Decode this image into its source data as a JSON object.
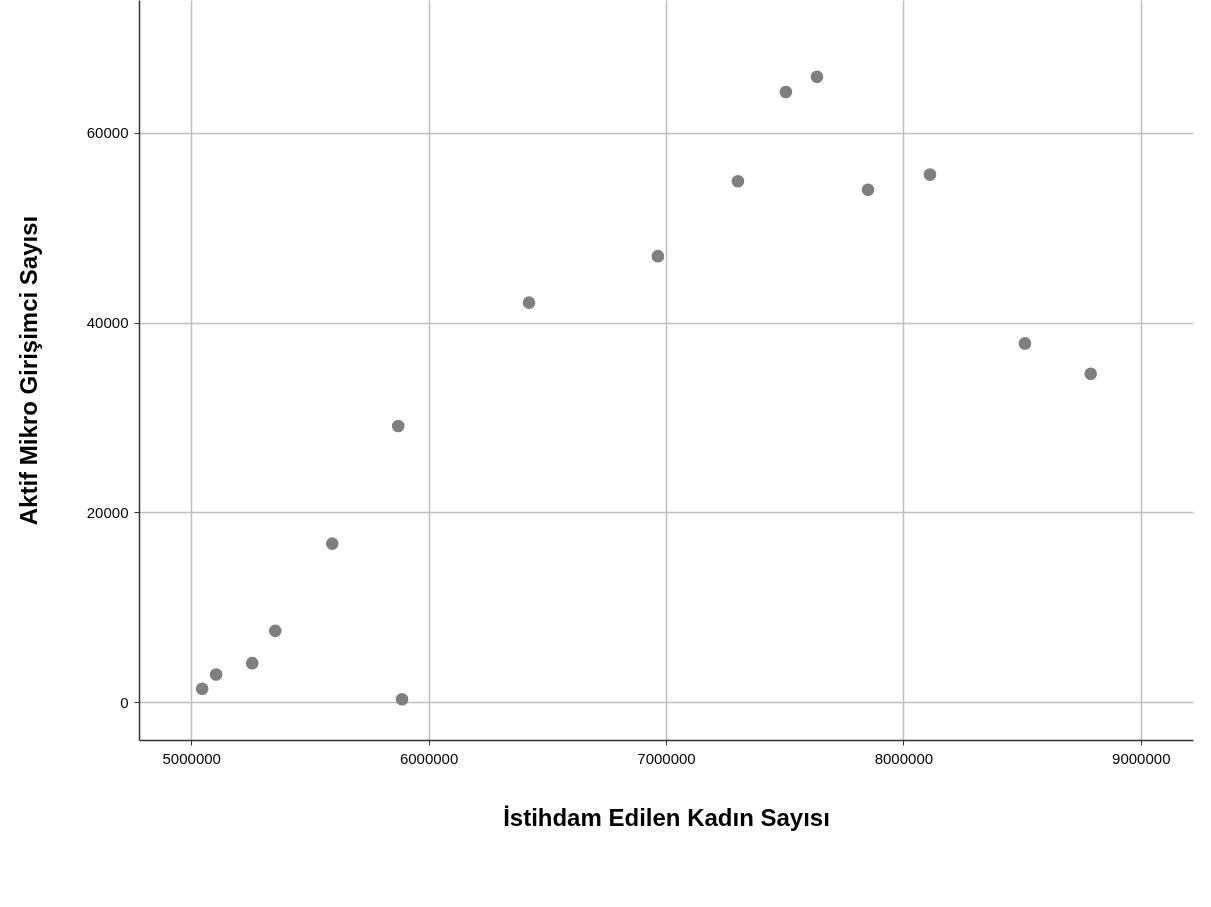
{
  "chart_data": {
    "type": "scatter",
    "xlabel": "İstihdam Edilen Kadın Sayısı",
    "ylabel": "Aktif Mikro Girişimci Sayısı",
    "x": [
      5046000,
      5105000,
      5257000,
      5354000,
      5594000,
      5872000,
      5888000,
      6423000,
      6966000,
      7303000,
      7505000,
      7636000,
      7851000,
      8112000,
      8512000,
      8789000
    ],
    "values": [
      1400,
      2900,
      4100,
      7500,
      16700,
      29100,
      300,
      42100,
      47000,
      54900,
      64300,
      65900,
      54000,
      55600,
      37800,
      34600
    ],
    "color": "#7f7f7f",
    "marker": "circle",
    "xlim": [
      4780000,
      9220000
    ],
    "ylim": [
      -4000,
      74000
    ],
    "xticks": [
      5000000,
      6000000,
      7000000,
      8000000,
      9000000
    ],
    "yticks": [
      0,
      20000,
      40000,
      60000
    ],
    "grid": true
  }
}
